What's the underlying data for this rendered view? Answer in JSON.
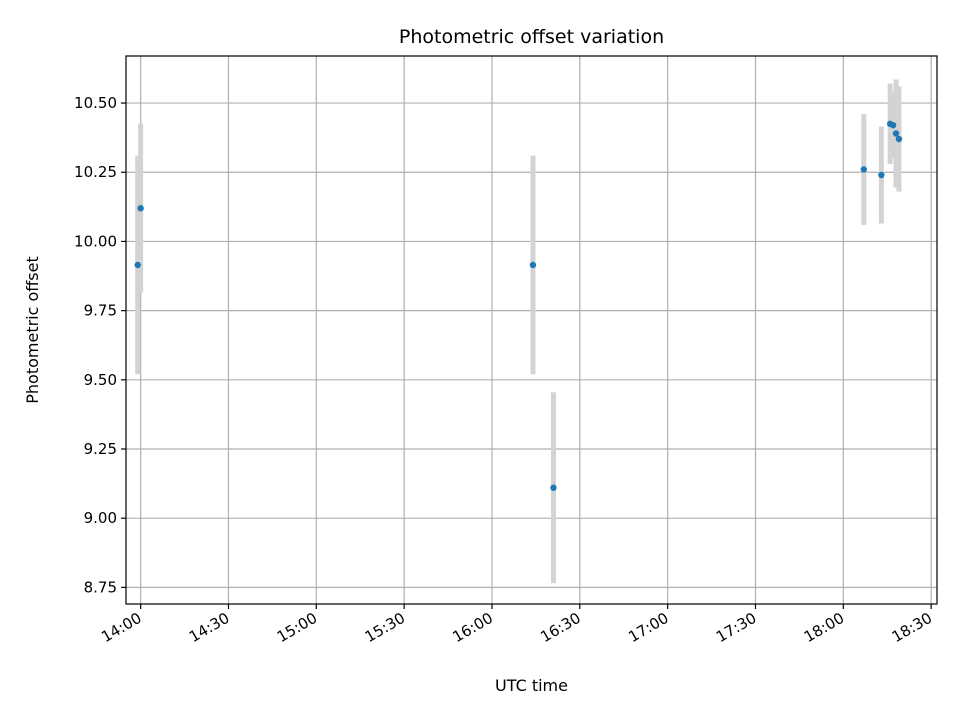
{
  "chart_data": {
    "type": "scatter",
    "title": "Photometric offset variation",
    "xlabel": "UTC time",
    "ylabel": "Photometric offset",
    "xlim": [
      "13:55",
      "18:32"
    ],
    "ylim": [
      8.69,
      10.67
    ],
    "x_ticks": [
      "14:00",
      "14:30",
      "15:00",
      "15:30",
      "16:00",
      "16:30",
      "17:00",
      "17:30",
      "18:00",
      "18:30"
    ],
    "y_ticks": [
      "8.75",
      "9.00",
      "9.25",
      "9.50",
      "9.75",
      "10.00",
      "10.25",
      "10.50"
    ],
    "grid": true,
    "points": [
      {
        "time": "13:59",
        "y": 9.915,
        "yerr": 0.395
      },
      {
        "time": "14:00",
        "y": 10.12,
        "yerr": 0.305
      },
      {
        "time": "16:14",
        "y": 9.915,
        "yerr": 0.395
      },
      {
        "time": "16:21",
        "y": 9.11,
        "yerr": 0.345
      },
      {
        "time": "18:07",
        "y": 10.26,
        "yerr": 0.2
      },
      {
        "time": "18:13",
        "y": 10.24,
        "yerr": 0.175
      },
      {
        "time": "18:16",
        "y": 10.425,
        "yerr": 0.145
      },
      {
        "time": "18:17",
        "y": 10.42,
        "yerr": 0.12
      },
      {
        "time": "18:18",
        "y": 10.39,
        "yerr": 0.195
      },
      {
        "time": "18:19",
        "y": 10.37,
        "yerr": 0.19
      }
    ],
    "colors": {
      "marker": "#1f77b4",
      "errorbar": "#d3d3d3",
      "grid": "#b0b0b0"
    }
  }
}
